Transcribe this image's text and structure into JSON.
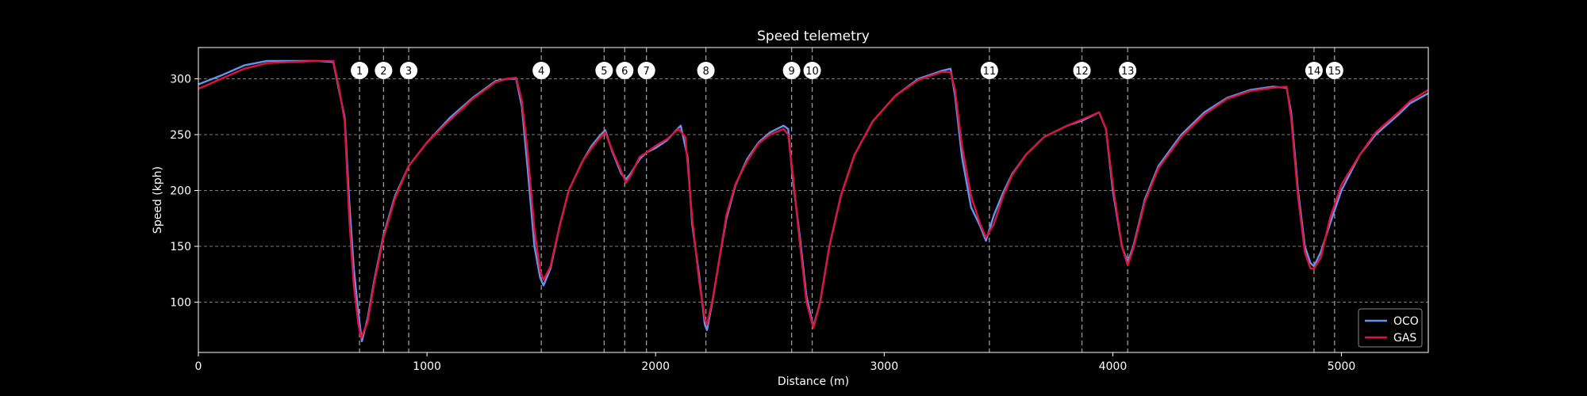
{
  "chart_data": {
    "type": "line",
    "title": "Speed telemetry",
    "xlabel": "Distance (m)",
    "ylabel": "Speed (kph)",
    "xlim": [
      0,
      5380
    ],
    "ylim": [
      55,
      328
    ],
    "xticks": [
      0,
      1000,
      2000,
      3000,
      4000,
      5000
    ],
    "yticks": [
      100,
      150,
      200,
      250,
      300
    ],
    "grid": "horizontal dashed",
    "legend_position": "bottom-right",
    "corners": [
      {
        "label": "1",
        "x": 705
      },
      {
        "label": "2",
        "x": 810
      },
      {
        "label": "3",
        "x": 920
      },
      {
        "label": "4",
        "x": 1500
      },
      {
        "label": "5",
        "x": 1775
      },
      {
        "label": "6",
        "x": 1865
      },
      {
        "label": "7",
        "x": 1960
      },
      {
        "label": "8",
        "x": 2220
      },
      {
        "label": "9",
        "x": 2595
      },
      {
        "label": "10",
        "x": 2685
      },
      {
        "label": "11",
        "x": 3460
      },
      {
        "label": "12",
        "x": 3865
      },
      {
        "label": "13",
        "x": 4065
      },
      {
        "label": "14",
        "x": 4880
      },
      {
        "label": "15",
        "x": 4970
      }
    ],
    "series": [
      {
        "name": "OCO",
        "color": "#6495ED",
        "points": [
          [
            0,
            295
          ],
          [
            100,
            303
          ],
          [
            200,
            312
          ],
          [
            300,
            316
          ],
          [
            400,
            316
          ],
          [
            520,
            316
          ],
          [
            590,
            315
          ],
          [
            615,
            290
          ],
          [
            640,
            265
          ],
          [
            660,
            190
          ],
          [
            680,
            130
          ],
          [
            700,
            90
          ],
          [
            715,
            65
          ],
          [
            740,
            85
          ],
          [
            770,
            120
          ],
          [
            810,
            160
          ],
          [
            860,
            195
          ],
          [
            920,
            222
          ],
          [
            1000,
            243
          ],
          [
            1100,
            265
          ],
          [
            1200,
            283
          ],
          [
            1300,
            298
          ],
          [
            1350,
            300
          ],
          [
            1390,
            300
          ],
          [
            1415,
            275
          ],
          [
            1440,
            220
          ],
          [
            1470,
            150
          ],
          [
            1495,
            122
          ],
          [
            1510,
            115
          ],
          [
            1540,
            130
          ],
          [
            1580,
            168
          ],
          [
            1620,
            200
          ],
          [
            1680,
            226
          ],
          [
            1720,
            240
          ],
          [
            1760,
            250
          ],
          [
            1780,
            254
          ],
          [
            1810,
            235
          ],
          [
            1850,
            215
          ],
          [
            1870,
            210
          ],
          [
            1890,
            215
          ],
          [
            1930,
            228
          ],
          [
            1960,
            234
          ],
          [
            2000,
            238
          ],
          [
            2050,
            245
          ],
          [
            2100,
            256
          ],
          [
            2110,
            258
          ],
          [
            2140,
            230
          ],
          [
            2160,
            170
          ],
          [
            2190,
            125
          ],
          [
            2215,
            80
          ],
          [
            2225,
            75
          ],
          [
            2250,
            102
          ],
          [
            2280,
            140
          ],
          [
            2310,
            175
          ],
          [
            2350,
            205
          ],
          [
            2400,
            228
          ],
          [
            2450,
            243
          ],
          [
            2500,
            252
          ],
          [
            2560,
            258
          ],
          [
            2580,
            255
          ],
          [
            2600,
            210
          ],
          [
            2630,
            160
          ],
          [
            2660,
            105
          ],
          [
            2690,
            78
          ],
          [
            2720,
            100
          ],
          [
            2760,
            150
          ],
          [
            2810,
            195
          ],
          [
            2870,
            232
          ],
          [
            2950,
            262
          ],
          [
            3050,
            285
          ],
          [
            3150,
            300
          ],
          [
            3250,
            307
          ],
          [
            3290,
            309
          ],
          [
            3310,
            285
          ],
          [
            3340,
            230
          ],
          [
            3380,
            185
          ],
          [
            3420,
            168
          ],
          [
            3445,
            155
          ],
          [
            3480,
            178
          ],
          [
            3520,
            198
          ],
          [
            3560,
            215
          ],
          [
            3620,
            232
          ],
          [
            3700,
            248
          ],
          [
            3800,
            258
          ],
          [
            3870,
            263
          ],
          [
            3940,
            270
          ],
          [
            3970,
            255
          ],
          [
            4000,
            200
          ],
          [
            4040,
            150
          ],
          [
            4065,
            136
          ],
          [
            4090,
            150
          ],
          [
            4140,
            192
          ],
          [
            4200,
            222
          ],
          [
            4300,
            250
          ],
          [
            4400,
            270
          ],
          [
            4500,
            283
          ],
          [
            4600,
            290
          ],
          [
            4700,
            293
          ],
          [
            4760,
            292
          ],
          [
            4780,
            270
          ],
          [
            4810,
            200
          ],
          [
            4840,
            150
          ],
          [
            4865,
            135
          ],
          [
            4880,
            132
          ],
          [
            4910,
            145
          ],
          [
            4950,
            170
          ],
          [
            5000,
            200
          ],
          [
            5080,
            232
          ],
          [
            5150,
            250
          ],
          [
            5250,
            268
          ],
          [
            5300,
            278
          ],
          [
            5380,
            287
          ]
        ]
      },
      {
        "name": "GAS",
        "color": "#DC143C",
        "points": [
          [
            0,
            291
          ],
          [
            100,
            300
          ],
          [
            200,
            309
          ],
          [
            300,
            314
          ],
          [
            400,
            315
          ],
          [
            520,
            316
          ],
          [
            590,
            316
          ],
          [
            615,
            292
          ],
          [
            640,
            262
          ],
          [
            660,
            175
          ],
          [
            680,
            115
          ],
          [
            700,
            80
          ],
          [
            712,
            68
          ],
          [
            740,
            82
          ],
          [
            770,
            118
          ],
          [
            810,
            158
          ],
          [
            860,
            193
          ],
          [
            920,
            222
          ],
          [
            1000,
            243
          ],
          [
            1100,
            263
          ],
          [
            1200,
            282
          ],
          [
            1300,
            297
          ],
          [
            1350,
            300
          ],
          [
            1390,
            301
          ],
          [
            1415,
            280
          ],
          [
            1440,
            235
          ],
          [
            1470,
            165
          ],
          [
            1495,
            128
          ],
          [
            1510,
            120
          ],
          [
            1540,
            132
          ],
          [
            1580,
            168
          ],
          [
            1620,
            200
          ],
          [
            1680,
            226
          ],
          [
            1720,
            238
          ],
          [
            1760,
            248
          ],
          [
            1780,
            252
          ],
          [
            1810,
            236
          ],
          [
            1840,
            222
          ],
          [
            1870,
            207
          ],
          [
            1890,
            213
          ],
          [
            1930,
            230
          ],
          [
            1960,
            234
          ],
          [
            2000,
            240
          ],
          [
            2050,
            246
          ],
          [
            2100,
            255
          ],
          [
            2130,
            248
          ],
          [
            2160,
            175
          ],
          [
            2190,
            120
          ],
          [
            2215,
            85
          ],
          [
            2225,
            80
          ],
          [
            2250,
            103
          ],
          [
            2280,
            140
          ],
          [
            2310,
            178
          ],
          [
            2350,
            206
          ],
          [
            2400,
            226
          ],
          [
            2450,
            242
          ],
          [
            2500,
            250
          ],
          [
            2560,
            255
          ],
          [
            2580,
            250
          ],
          [
            2600,
            215
          ],
          [
            2630,
            155
          ],
          [
            2660,
            100
          ],
          [
            2690,
            77
          ],
          [
            2720,
            100
          ],
          [
            2760,
            150
          ],
          [
            2810,
            195
          ],
          [
            2870,
            232
          ],
          [
            2950,
            262
          ],
          [
            3050,
            285
          ],
          [
            3150,
            299
          ],
          [
            3250,
            306
          ],
          [
            3290,
            306
          ],
          [
            3310,
            290
          ],
          [
            3340,
            240
          ],
          [
            3380,
            195
          ],
          [
            3420,
            170
          ],
          [
            3445,
            158
          ],
          [
            3480,
            170
          ],
          [
            3520,
            195
          ],
          [
            3560,
            214
          ],
          [
            3620,
            232
          ],
          [
            3700,
            248
          ],
          [
            3800,
            258
          ],
          [
            3870,
            264
          ],
          [
            3940,
            270
          ],
          [
            3970,
            255
          ],
          [
            4000,
            205
          ],
          [
            4040,
            150
          ],
          [
            4065,
            133
          ],
          [
            4090,
            148
          ],
          [
            4140,
            190
          ],
          [
            4200,
            220
          ],
          [
            4300,
            248
          ],
          [
            4400,
            268
          ],
          [
            4500,
            282
          ],
          [
            4600,
            289
          ],
          [
            4700,
            292
          ],
          [
            4760,
            293
          ],
          [
            4780,
            265
          ],
          [
            4810,
            195
          ],
          [
            4840,
            145
          ],
          [
            4865,
            130
          ],
          [
            4880,
            130
          ],
          [
            4910,
            140
          ],
          [
            4950,
            175
          ],
          [
            5000,
            205
          ],
          [
            5080,
            232
          ],
          [
            5150,
            252
          ],
          [
            5250,
            270
          ],
          [
            5300,
            280
          ],
          [
            5380,
            290
          ]
        ]
      }
    ]
  }
}
